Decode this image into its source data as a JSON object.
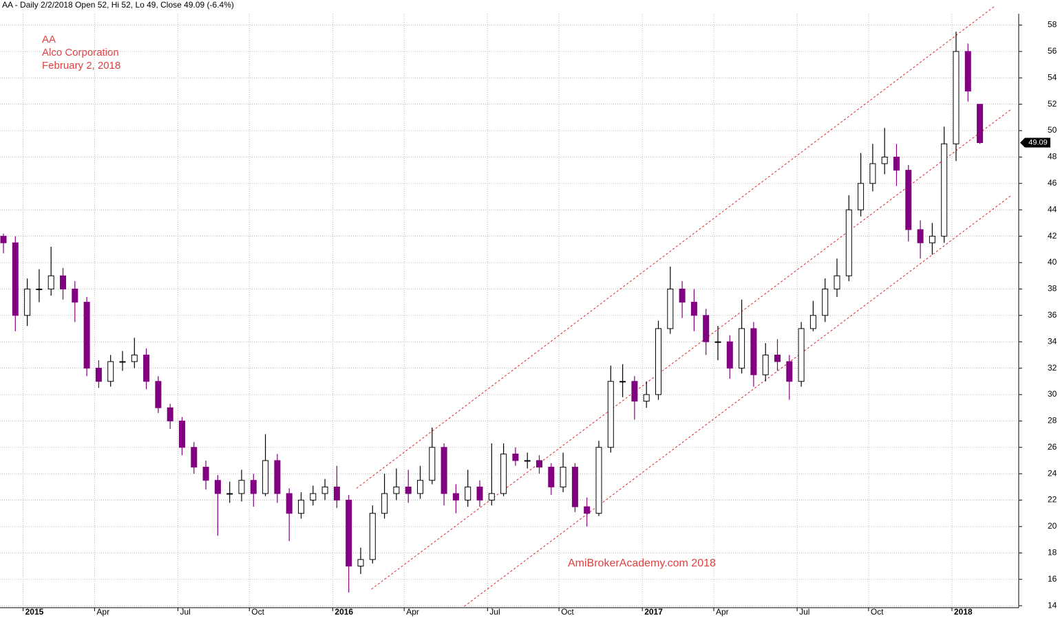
{
  "chart_data": {
    "type": "candlestick",
    "title": "AA - Daily 2/2/2018 Open 52, Hi 52, Lo 49, Close 49.09 (-6.4%)",
    "annotations": [
      "AA",
      "Alco Corporation",
      "February 2, 2018"
    ],
    "watermark": "AmiBrokerAcademy.com  2018",
    "categories": [
      null,
      null,
      "2015",
      null,
      null,
      null,
      null,
      null,
      "Apr",
      null,
      null,
      null,
      null,
      null,
      null,
      "Jul",
      null,
      null,
      null,
      null,
      null,
      "Oct",
      null,
      null,
      null,
      null,
      null,
      null,
      "2016",
      null,
      null,
      null,
      null,
      null,
      "Apr",
      null,
      null,
      null,
      null,
      null,
      null,
      "Jul",
      null,
      null,
      null,
      null,
      null,
      "Oct",
      null,
      null,
      null,
      null,
      null,
      null,
      "2017",
      null,
      null,
      null,
      null,
      null,
      "Apr",
      null,
      null,
      null,
      null,
      null,
      null,
      "Jul",
      null,
      null,
      null,
      null,
      null,
      "Oct",
      null,
      null,
      null,
      null,
      null,
      null,
      "2018",
      null,
      null
    ],
    "open": [
      42,
      41.5,
      36,
      38,
      38,
      39,
      38,
      37,
      32,
      31,
      32.5,
      32.5,
      33,
      31,
      29,
      28,
      26,
      24.5,
      23.5,
      22.5,
      22.5,
      23.5,
      22.5,
      25,
      22.5,
      21,
      22,
      22.5,
      23,
      22,
      17,
      17.5,
      21,
      22.5,
      23,
      22.5,
      23.5,
      26,
      22.5,
      22,
      23,
      22,
      22.5,
      25.5,
      25,
      25,
      24.5,
      23,
      24.5,
      21.5,
      21,
      26,
      31,
      31,
      29.5,
      30,
      35,
      38,
      37,
      36,
      34,
      34,
      32,
      35,
      31.5,
      33,
      32.5,
      31,
      35,
      36,
      38,
      39,
      44,
      46,
      47.5,
      48,
      47,
      42.5,
      41.5,
      42,
      49,
      56,
      52
    ],
    "high": [
      42.2,
      42,
      38.8,
      39.5,
      41.2,
      39.6,
      38.6,
      37.4,
      32.6,
      33,
      33.3,
      34.3,
      33.5,
      31.4,
      29.3,
      28.3,
      26.4,
      25,
      23.9,
      23.4,
      24.3,
      24,
      27,
      25.5,
      22.9,
      22.6,
      23.1,
      23.6,
      24.6,
      22.4,
      18.4,
      21.6,
      24,
      24.4,
      24.3,
      24.6,
      27.5,
      26.3,
      23.2,
      24.3,
      23.5,
      26.3,
      26.3,
      26,
      25.6,
      25.4,
      24.8,
      25.6,
      24.8,
      22.2,
      26.5,
      32.2,
      32.3,
      31.4,
      31,
      35.6,
      39.7,
      38.6,
      38,
      36.5,
      35.2,
      34.5,
      37.2,
      35.5,
      33.9,
      34.2,
      33,
      35.5,
      37.1,
      38.8,
      40.3,
      45.1,
      48.3,
      49,
      50.2,
      49,
      47.4,
      43.2,
      43,
      50.3,
      57.5,
      56.6,
      52
    ],
    "low": [
      40.7,
      34.8,
      35.2,
      37,
      37.5,
      37.2,
      35.5,
      31.4,
      30.5,
      30.6,
      31.8,
      32,
      30.4,
      28.6,
      27.4,
      25.4,
      24,
      22.8,
      19.3,
      21.8,
      21.9,
      21.5,
      22.3,
      21.8,
      18.9,
      20.6,
      21.6,
      22,
      21.4,
      15,
      16.4,
      17.2,
      20.6,
      22,
      21.8,
      22.1,
      23.2,
      21.6,
      21,
      21.5,
      21.5,
      21.6,
      22.3,
      24.6,
      24.4,
      24,
      22.4,
      22.6,
      21.1,
      20,
      20.8,
      25.6,
      29.8,
      28.1,
      29,
      29.6,
      34.6,
      35.8,
      34.8,
      33,
      32.6,
      31.2,
      31.6,
      30.6,
      31,
      31.8,
      29.6,
      30.6,
      34.8,
      35.5,
      37.4,
      38.6,
      43.5,
      45.4,
      46.7,
      45.8,
      41.6,
      40.3,
      40.6,
      41.5,
      47.7,
      52.2,
      49
    ],
    "close": [
      41.5,
      36,
      38,
      38,
      39,
      38,
      37,
      32,
      31,
      32.5,
      32.5,
      33,
      31,
      29,
      28,
      26,
      24.5,
      23.5,
      22.5,
      22.5,
      23.5,
      22.5,
      25,
      22.5,
      21,
      22,
      22.5,
      23,
      22,
      17,
      17.5,
      21,
      22.5,
      23,
      22.5,
      23.5,
      26,
      22.5,
      22,
      23,
      22,
      22.5,
      25.5,
      25,
      25,
      24.5,
      23,
      24.5,
      21.5,
      21,
      26,
      31,
      31,
      29.5,
      30,
      35,
      38,
      37,
      36,
      34,
      34,
      32,
      35,
      31.5,
      33,
      32.5,
      31,
      35,
      36,
      38,
      39,
      44,
      46,
      47.5,
      48,
      47,
      42.5,
      41.5,
      42,
      49,
      56,
      53,
      49.09
    ],
    "up_color": "#000000",
    "down_color": "#800080",
    "ylim": [
      13.85,
      59.9
    ],
    "yticks": [
      14,
      16,
      18,
      20,
      22,
      24,
      26,
      28,
      30,
      32,
      34,
      36,
      38,
      40,
      42,
      44,
      46,
      48,
      50,
      52,
      54,
      56,
      58
    ],
    "grid": true,
    "trendline_color": "#e02020",
    "trendlines": [
      {
        "x": [
          29.65,
          83.2
        ],
        "y": [
          22.9,
          59.4
        ]
      },
      {
        "x": [
          30.9,
          84.6
        ],
        "y": [
          15.25,
          51.6
        ]
      },
      {
        "x": [
          38.7,
          84.6
        ],
        "y": [
          13.95,
          45.07
        ]
      }
    ]
  }
}
